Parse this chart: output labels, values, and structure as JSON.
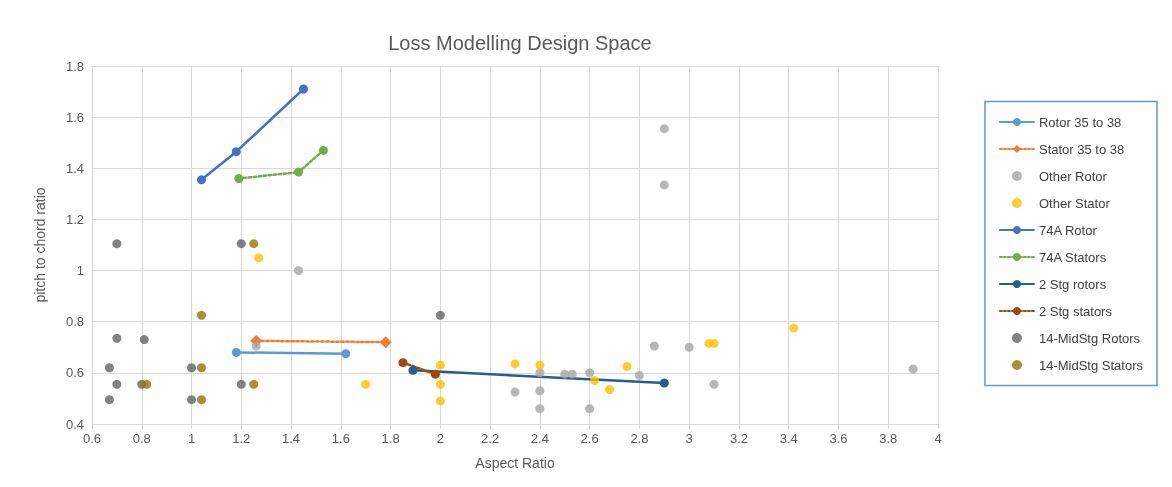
{
  "chart_data": {
    "type": "scatter",
    "title": "Loss Modelling Design Space",
    "xlabel": "Aspect Ratio",
    "ylabel": "pitch to chord ratio",
    "xlim": [
      0.6,
      4
    ],
    "xticks": [
      0.6,
      0.8,
      1,
      1.2,
      1.4,
      1.6,
      1.8,
      2,
      2.2,
      2.4,
      2.6,
      2.8,
      3,
      3.2,
      3.4,
      3.6,
      3.8,
      4
    ],
    "ylim": [
      0.4,
      1.8
    ],
    "yticks": [
      0.4,
      0.6,
      0.8,
      1,
      1.2,
      1.4,
      1.6,
      1.8
    ],
    "grid": true,
    "legend": "right",
    "series": [
      {
        "name": "Rotor 35 to 38",
        "type": "line",
        "marker": "circle",
        "line_style": "solid",
        "color": "#5b9bd5",
        "x": [
          1.18,
          1.62
        ],
        "values": [
          0.68,
          0.675
        ]
      },
      {
        "name": "Stator 35 to 38",
        "type": "line",
        "marker": "diamond",
        "line_style": "dotted",
        "color": "#ed7d31",
        "x": [
          1.26,
          1.78
        ],
        "values": [
          0.725,
          0.72
        ]
      },
      {
        "name": "Other Rotor",
        "marker": "circle",
        "color": "#a5a5a5",
        "x": [
          1.26,
          1.43,
          2.9,
          2.9,
          2.86,
          3.0,
          3.1,
          3.9,
          2.4,
          2.5,
          2.53,
          2.6,
          2.8,
          2.3,
          2.4,
          2.4,
          2.6
        ],
        "values": [
          0.705,
          1.0,
          1.555,
          1.335,
          0.705,
          0.7,
          0.555,
          0.615,
          0.6,
          0.595,
          0.595,
          0.6,
          0.59,
          0.525,
          0.53,
          0.46,
          0.46
        ]
      },
      {
        "name": "Other Stator",
        "marker": "circle",
        "color": "#ffc000",
        "x": [
          1.27,
          1.7,
          2.0,
          2.0,
          2.0,
          2.3,
          2.4,
          2.62,
          2.68,
          2.75,
          3.08,
          3.1,
          3.42
        ],
        "values": [
          1.05,
          0.555,
          0.63,
          0.555,
          0.49,
          0.635,
          0.63,
          0.57,
          0.535,
          0.625,
          0.715,
          0.715,
          0.775
        ]
      },
      {
        "name": "74A Rotor",
        "type": "line",
        "marker": "circle",
        "line_style": "solid",
        "color": "#4472c4",
        "x": [
          1.04,
          1.18,
          1.45
        ],
        "values": [
          1.355,
          1.465,
          1.71
        ]
      },
      {
        "name": "74A Stators",
        "type": "line",
        "marker": "circle",
        "line_style": "dotted",
        "color": "#70ad47",
        "x": [
          1.19,
          1.43,
          1.53
        ],
        "values": [
          1.36,
          1.385,
          1.47
        ]
      },
      {
        "name": "2 Stg rotors",
        "type": "line",
        "marker": "circle",
        "line_style": "solid",
        "color": "#255e91",
        "x": [
          1.89,
          2.9
        ],
        "values": [
          0.61,
          0.56
        ]
      },
      {
        "name": "2 Stg stators",
        "type": "line",
        "marker": "circle",
        "line_style": "dotted",
        "color": "#9e480e",
        "x": [
          1.85,
          1.98
        ],
        "values": [
          0.64,
          0.595
        ]
      },
      {
        "name": "14-MidStg Rotors",
        "marker": "circle",
        "color": "#636363",
        "x": [
          0.7,
          1.2,
          2.0,
          0.7,
          0.81,
          0.67,
          1.0,
          0.7,
          0.8,
          1.2,
          0.67,
          1.0
        ],
        "values": [
          1.105,
          1.105,
          0.825,
          0.735,
          0.73,
          0.62,
          0.62,
          0.555,
          0.555,
          0.555,
          0.495,
          0.495
        ]
      },
      {
        "name": "14-MidStg Stators",
        "marker": "circle",
        "color": "#997300",
        "x": [
          1.25,
          1.04,
          1.04,
          0.82,
          1.25,
          1.04
        ],
        "values": [
          1.105,
          0.825,
          0.62,
          0.555,
          0.555,
          0.495
        ]
      }
    ]
  }
}
